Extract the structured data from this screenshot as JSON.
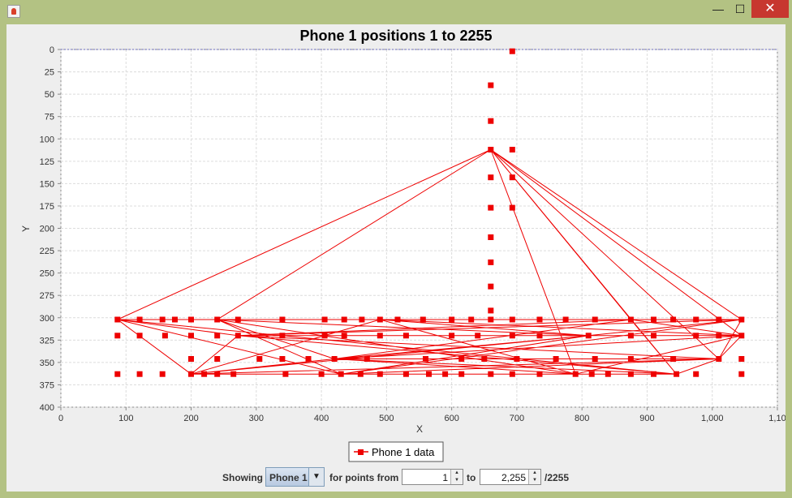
{
  "window": {
    "title": ""
  },
  "colors": {
    "series": "#ee0000",
    "plot_bg": "#ffffff",
    "grid": "#dddddd",
    "window_frame": "#b3c283"
  },
  "controls": {
    "showing_label": "Showing",
    "phone_select_value": "Phone 1",
    "for_points_label": "for points from",
    "from_value": "1",
    "to_label": "to",
    "to_value": "2,255",
    "total_label": "/2255"
  },
  "chart_data": {
    "type": "line",
    "title": "Phone 1 positions 1 to 2255",
    "xlabel": "X",
    "ylabel": "Y",
    "xlim": [
      0,
      1100
    ],
    "ylim": [
      0,
      400
    ],
    "y_inverted": true,
    "grid": true,
    "legend": "bottom-center",
    "x_ticks": [
      "0",
      "100",
      "200",
      "300",
      "400",
      "500",
      "600",
      "700",
      "800",
      "900",
      "1,000",
      "1,10"
    ],
    "y_ticks": [
      "0",
      "25",
      "50",
      "75",
      "100",
      "125",
      "150",
      "175",
      "200",
      "225",
      "250",
      "275",
      "300",
      "325",
      "350",
      "375",
      "400"
    ],
    "series": [
      {
        "name": "Phone 1 data",
        "x": [
          87,
          121,
          156,
          175,
          200,
          240,
          272,
          340,
          405,
          435,
          462,
          490,
          517,
          556,
          600,
          630,
          660,
          693,
          735,
          775,
          820,
          875,
          910,
          940,
          975,
          1010,
          1045,
          87,
          121,
          160,
          200,
          240,
          272,
          340,
          405,
          435,
          490,
          530,
          600,
          640,
          693,
          735,
          810,
          875,
          910,
          975,
          1010,
          1045,
          200,
          240,
          305,
          340,
          380,
          420,
          470,
          560,
          615,
          650,
          700,
          760,
          820,
          875,
          940,
          1010,
          1045,
          87,
          121,
          156,
          200,
          220,
          240,
          265,
          345,
          400,
          430,
          460,
          490,
          530,
          565,
          590,
          615,
          660,
          693,
          735,
          790,
          815,
          840,
          875,
          910,
          945,
          975,
          1045,
          693,
          660,
          660,
          660,
          660,
          660,
          660,
          660,
          693,
          693,
          660,
          693,
          660
        ],
        "y": [
          302,
          302,
          302,
          302,
          302,
          302,
          302,
          302,
          302,
          302,
          302,
          302,
          302,
          302,
          302,
          302,
          302,
          302,
          302,
          302,
          302,
          302,
          302,
          302,
          302,
          302,
          302,
          320,
          320,
          320,
          320,
          320,
          320,
          320,
          320,
          320,
          320,
          320,
          320,
          320,
          320,
          320,
          320,
          320,
          320,
          320,
          320,
          320,
          346,
          346,
          346,
          346,
          346,
          346,
          346,
          346,
          346,
          346,
          346,
          346,
          346,
          346,
          346,
          346,
          346,
          363,
          363,
          363,
          363,
          363,
          363,
          363,
          363,
          363,
          363,
          363,
          363,
          363,
          363,
          363,
          363,
          363,
          363,
          363,
          363,
          363,
          363,
          363,
          363,
          363,
          363,
          363,
          2,
          40,
          80,
          112,
          143,
          177,
          210,
          238,
          112,
          143,
          265,
          177,
          292
        ]
      }
    ]
  }
}
